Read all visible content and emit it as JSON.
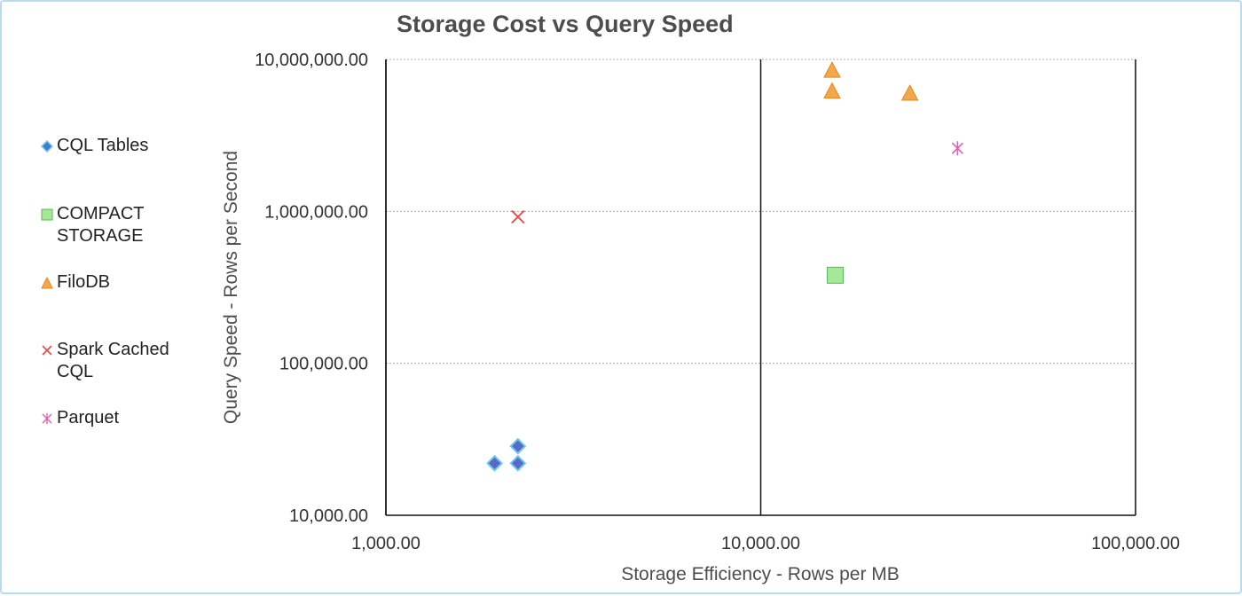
{
  "chart_data": {
    "type": "scatter",
    "title": "Storage Cost vs Query Speed",
    "xlabel": "Storage Efficiency - Rows per MB",
    "ylabel": "Query Speed - Rows per Second",
    "xscale": "log",
    "yscale": "log",
    "xlim": [
      1000,
      100000
    ],
    "ylim": [
      10000,
      10000000
    ],
    "x_ticks": [
      "1,000.00",
      "10,000.00",
      "100,000.00"
    ],
    "y_ticks": [
      "10,000.00",
      "100,000.00",
      "1,000,000.00",
      "10,000,000.00"
    ],
    "grid": "major y gridlines (dotted), major x gridlines (solid)",
    "legend_position": "left",
    "series": [
      {
        "name": "CQL Tables",
        "marker": "diamond",
        "color": "#3a7fd5",
        "points": [
          {
            "x": 1950,
            "y": 22000
          },
          {
            "x": 2250,
            "y": 22000
          },
          {
            "x": 2250,
            "y": 28500
          }
        ]
      },
      {
        "name": "COMPACT STORAGE",
        "marker": "square",
        "color": "#7ed67a",
        "points": [
          {
            "x": 15800,
            "y": 380000
          }
        ]
      },
      {
        "name": "FiloDB",
        "marker": "triangle",
        "color": "#f0a040",
        "points": [
          {
            "x": 15500,
            "y": 8500000
          },
          {
            "x": 15500,
            "y": 6200000
          },
          {
            "x": 25000,
            "y": 6000000
          }
        ]
      },
      {
        "name": "Spark Cached CQL",
        "marker": "x",
        "color": "#e8474a",
        "points": [
          {
            "x": 2250,
            "y": 920000
          }
        ]
      },
      {
        "name": "Parquet",
        "marker": "asterisk",
        "color": "#e35fb5",
        "points": [
          {
            "x": 33500,
            "y": 2600000
          }
        ]
      }
    ]
  },
  "legend": {
    "items": [
      {
        "label": "CQL Tables"
      },
      {
        "label": "COMPACT\nSTORAGE"
      },
      {
        "label": "FiloDB"
      },
      {
        "label": "Spark Cached\nCQL"
      },
      {
        "label": "Parquet"
      }
    ]
  }
}
